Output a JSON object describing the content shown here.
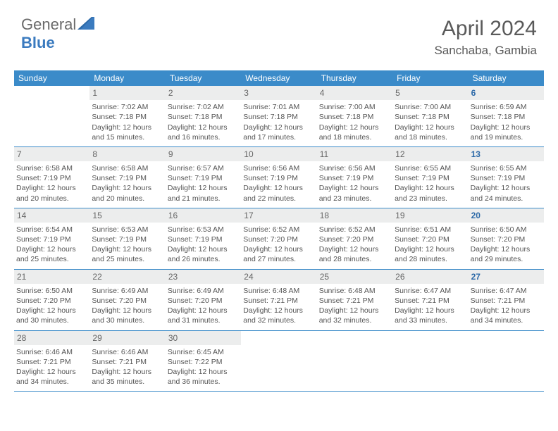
{
  "logo": {
    "text1": "General",
    "text2": "Blue"
  },
  "title": "April 2024",
  "location": "Sanchaba, Gambia",
  "colors": {
    "header_bg": "#3b8bc9",
    "header_text": "#ffffff",
    "date_bg": "#eceded",
    "logo_blue": "#3b7bbf",
    "logo_gray": "#6a6a6a",
    "body_text": "#555555",
    "sat_color": "#2d6aa8"
  },
  "day_headers": [
    "Sunday",
    "Monday",
    "Tuesday",
    "Wednesday",
    "Thursday",
    "Friday",
    "Saturday"
  ],
  "weeks": [
    [
      null,
      {
        "d": "1",
        "sr": "7:02 AM",
        "ss": "7:18 PM",
        "dl1": "Daylight: 12 hours",
        "dl2": "and 15 minutes."
      },
      {
        "d": "2",
        "sr": "7:02 AM",
        "ss": "7:18 PM",
        "dl1": "Daylight: 12 hours",
        "dl2": "and 16 minutes."
      },
      {
        "d": "3",
        "sr": "7:01 AM",
        "ss": "7:18 PM",
        "dl1": "Daylight: 12 hours",
        "dl2": "and 17 minutes."
      },
      {
        "d": "4",
        "sr": "7:00 AM",
        "ss": "7:18 PM",
        "dl1": "Daylight: 12 hours",
        "dl2": "and 18 minutes."
      },
      {
        "d": "5",
        "sr": "7:00 AM",
        "ss": "7:18 PM",
        "dl1": "Daylight: 12 hours",
        "dl2": "and 18 minutes."
      },
      {
        "d": "6",
        "sr": "6:59 AM",
        "ss": "7:18 PM",
        "dl1": "Daylight: 12 hours",
        "dl2": "and 19 minutes.",
        "sat": true
      }
    ],
    [
      {
        "d": "7",
        "sr": "6:58 AM",
        "ss": "7:19 PM",
        "dl1": "Daylight: 12 hours",
        "dl2": "and 20 minutes."
      },
      {
        "d": "8",
        "sr": "6:58 AM",
        "ss": "7:19 PM",
        "dl1": "Daylight: 12 hours",
        "dl2": "and 20 minutes."
      },
      {
        "d": "9",
        "sr": "6:57 AM",
        "ss": "7:19 PM",
        "dl1": "Daylight: 12 hours",
        "dl2": "and 21 minutes."
      },
      {
        "d": "10",
        "sr": "6:56 AM",
        "ss": "7:19 PM",
        "dl1": "Daylight: 12 hours",
        "dl2": "and 22 minutes."
      },
      {
        "d": "11",
        "sr": "6:56 AM",
        "ss": "7:19 PM",
        "dl1": "Daylight: 12 hours",
        "dl2": "and 23 minutes."
      },
      {
        "d": "12",
        "sr": "6:55 AM",
        "ss": "7:19 PM",
        "dl1": "Daylight: 12 hours",
        "dl2": "and 23 minutes."
      },
      {
        "d": "13",
        "sr": "6:55 AM",
        "ss": "7:19 PM",
        "dl1": "Daylight: 12 hours",
        "dl2": "and 24 minutes.",
        "sat": true
      }
    ],
    [
      {
        "d": "14",
        "sr": "6:54 AM",
        "ss": "7:19 PM",
        "dl1": "Daylight: 12 hours",
        "dl2": "and 25 minutes."
      },
      {
        "d": "15",
        "sr": "6:53 AM",
        "ss": "7:19 PM",
        "dl1": "Daylight: 12 hours",
        "dl2": "and 25 minutes."
      },
      {
        "d": "16",
        "sr": "6:53 AM",
        "ss": "7:19 PM",
        "dl1": "Daylight: 12 hours",
        "dl2": "and 26 minutes."
      },
      {
        "d": "17",
        "sr": "6:52 AM",
        "ss": "7:20 PM",
        "dl1": "Daylight: 12 hours",
        "dl2": "and 27 minutes."
      },
      {
        "d": "18",
        "sr": "6:52 AM",
        "ss": "7:20 PM",
        "dl1": "Daylight: 12 hours",
        "dl2": "and 28 minutes."
      },
      {
        "d": "19",
        "sr": "6:51 AM",
        "ss": "7:20 PM",
        "dl1": "Daylight: 12 hours",
        "dl2": "and 28 minutes."
      },
      {
        "d": "20",
        "sr": "6:50 AM",
        "ss": "7:20 PM",
        "dl1": "Daylight: 12 hours",
        "dl2": "and 29 minutes.",
        "sat": true
      }
    ],
    [
      {
        "d": "21",
        "sr": "6:50 AM",
        "ss": "7:20 PM",
        "dl1": "Daylight: 12 hours",
        "dl2": "and 30 minutes."
      },
      {
        "d": "22",
        "sr": "6:49 AM",
        "ss": "7:20 PM",
        "dl1": "Daylight: 12 hours",
        "dl2": "and 30 minutes."
      },
      {
        "d": "23",
        "sr": "6:49 AM",
        "ss": "7:20 PM",
        "dl1": "Daylight: 12 hours",
        "dl2": "and 31 minutes."
      },
      {
        "d": "24",
        "sr": "6:48 AM",
        "ss": "7:21 PM",
        "dl1": "Daylight: 12 hours",
        "dl2": "and 32 minutes."
      },
      {
        "d": "25",
        "sr": "6:48 AM",
        "ss": "7:21 PM",
        "dl1": "Daylight: 12 hours",
        "dl2": "and 32 minutes."
      },
      {
        "d": "26",
        "sr": "6:47 AM",
        "ss": "7:21 PM",
        "dl1": "Daylight: 12 hours",
        "dl2": "and 33 minutes."
      },
      {
        "d": "27",
        "sr": "6:47 AM",
        "ss": "7:21 PM",
        "dl1": "Daylight: 12 hours",
        "dl2": "and 34 minutes.",
        "sat": true
      }
    ],
    [
      {
        "d": "28",
        "sr": "6:46 AM",
        "ss": "7:21 PM",
        "dl1": "Daylight: 12 hours",
        "dl2": "and 34 minutes."
      },
      {
        "d": "29",
        "sr": "6:46 AM",
        "ss": "7:21 PM",
        "dl1": "Daylight: 12 hours",
        "dl2": "and 35 minutes."
      },
      {
        "d": "30",
        "sr": "6:45 AM",
        "ss": "7:22 PM",
        "dl1": "Daylight: 12 hours",
        "dl2": "and 36 minutes."
      },
      null,
      null,
      null,
      null
    ]
  ]
}
